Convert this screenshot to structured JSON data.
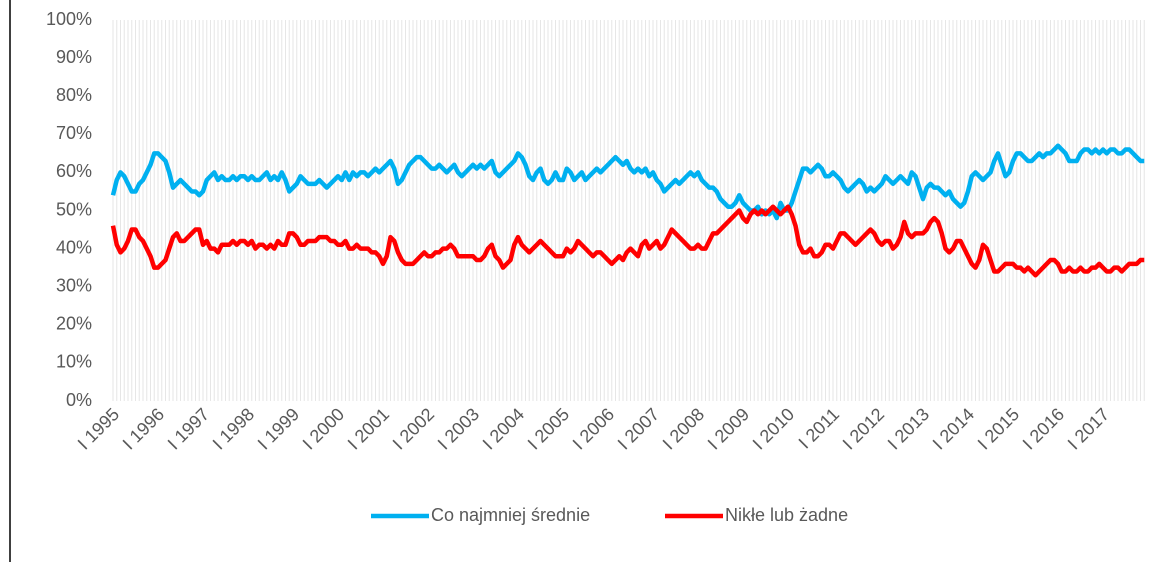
{
  "chart_data": {
    "type": "line",
    "categories": [
      "I 1995",
      null,
      null,
      null,
      null,
      null,
      null,
      null,
      null,
      null,
      null,
      null,
      "I 1996",
      null,
      null,
      null,
      null,
      null,
      null,
      null,
      null,
      null,
      null,
      null,
      "I 1997",
      null,
      null,
      null,
      null,
      null,
      null,
      null,
      null,
      null,
      null,
      null,
      "I 1998",
      null,
      null,
      null,
      null,
      null,
      null,
      null,
      null,
      null,
      null,
      null,
      "I 1999",
      null,
      null,
      null,
      null,
      null,
      null,
      null,
      null,
      null,
      null,
      null,
      "I 2000",
      null,
      null,
      null,
      null,
      null,
      null,
      null,
      null,
      null,
      null,
      null,
      "I 2001",
      null,
      null,
      null,
      null,
      null,
      null,
      null,
      null,
      null,
      null,
      null,
      "I 2002",
      null,
      null,
      null,
      null,
      null,
      null,
      null,
      null,
      null,
      null,
      null,
      "I 2003",
      null,
      null,
      null,
      null,
      null,
      null,
      null,
      null,
      null,
      null,
      null,
      "I 2004",
      null,
      null,
      null,
      null,
      null,
      null,
      null,
      null,
      null,
      null,
      null,
      "I 2005",
      null,
      null,
      null,
      null,
      null,
      null,
      null,
      null,
      null,
      null,
      null,
      "I 2006",
      null,
      null,
      null,
      null,
      null,
      null,
      null,
      null,
      null,
      null,
      null,
      "I 2007",
      null,
      null,
      null,
      null,
      null,
      null,
      null,
      null,
      null,
      null,
      null,
      "I 2008",
      null,
      null,
      null,
      null,
      null,
      null,
      null,
      null,
      null,
      null,
      null,
      "I 2009",
      null,
      null,
      null,
      null,
      null,
      null,
      null,
      null,
      null,
      null,
      null,
      "I 2010",
      null,
      null,
      null,
      null,
      null,
      null,
      null,
      null,
      null,
      null,
      null,
      "I 2011",
      null,
      null,
      null,
      null,
      null,
      null,
      null,
      null,
      null,
      null,
      null,
      "I 2012",
      null,
      null,
      null,
      null,
      null,
      null,
      null,
      null,
      null,
      null,
      null,
      "I 2013",
      null,
      null,
      null,
      null,
      null,
      null,
      null,
      null,
      null,
      null,
      null,
      "I 2014",
      null,
      null,
      null,
      null,
      null,
      null,
      null,
      null,
      null,
      null,
      null,
      "I 2015",
      null,
      null,
      null,
      null,
      null,
      null,
      null,
      null,
      null,
      null,
      null,
      "I 2016",
      null,
      null,
      null,
      null,
      null,
      null,
      null,
      null,
      null,
      null,
      null,
      "I 2017",
      null,
      null,
      null,
      null,
      null,
      null,
      null,
      null,
      null,
      null,
      null
    ],
    "series": [
      {
        "name": "Co najmniej średnie",
        "color": "#00b0f0",
        "values": [
          54,
          58,
          60,
          59,
          57,
          55,
          55,
          57,
          58,
          60,
          62,
          65,
          65,
          64,
          63,
          60,
          56,
          57,
          58,
          57,
          56,
          55,
          55,
          54,
          55,
          58,
          59,
          60,
          58,
          59,
          58,
          58,
          59,
          58,
          59,
          59,
          58,
          59,
          58,
          58,
          59,
          60,
          58,
          59,
          58,
          60,
          58,
          55,
          56,
          57,
          59,
          58,
          57,
          57,
          57,
          58,
          57,
          56,
          57,
          58,
          59,
          58,
          60,
          58,
          60,
          59,
          60,
          60,
          59,
          60,
          61,
          60,
          61,
          62,
          63,
          61,
          57,
          58,
          60,
          62,
          63,
          64,
          64,
          63,
          62,
          61,
          61,
          62,
          61,
          60,
          61,
          62,
          60,
          59,
          60,
          61,
          62,
          61,
          62,
          61,
          62,
          63,
          60,
          59,
          60,
          61,
          62,
          63,
          65,
          64,
          62,
          59,
          58,
          60,
          61,
          58,
          57,
          58,
          60,
          58,
          58,
          61,
          60,
          58,
          59,
          60,
          58,
          59,
          60,
          61,
          60,
          61,
          62,
          63,
          64,
          63,
          62,
          63,
          61,
          60,
          61,
          60,
          61,
          59,
          60,
          58,
          57,
          55,
          56,
          57,
          58,
          57,
          58,
          59,
          60,
          59,
          60,
          58,
          57,
          56,
          56,
          55,
          53,
          52,
          51,
          51,
          52,
          54,
          52,
          51,
          50,
          50,
          51,
          49,
          50,
          49,
          50,
          48,
          52,
          50,
          50,
          52,
          55,
          58,
          61,
          61,
          60,
          61,
          62,
          61,
          59,
          59,
          60,
          59,
          58,
          56,
          55,
          56,
          57,
          58,
          57,
          55,
          56,
          55,
          56,
          57,
          59,
          58,
          57,
          58,
          59,
          58,
          57,
          60,
          59,
          56,
          53,
          56,
          57,
          56,
          56,
          55,
          54,
          55,
          53,
          52,
          51,
          52,
          55,
          59,
          60,
          59,
          58,
          59,
          60,
          63,
          65,
          62,
          59,
          60,
          63,
          65,
          65,
          64,
          63,
          63,
          64,
          65,
          64,
          65,
          65,
          66,
          67,
          66,
          65,
          63,
          63,
          63,
          65,
          66,
          66,
          65,
          66,
          65,
          66,
          65,
          66,
          66,
          65,
          65,
          66,
          66,
          65,
          64,
          63,
          63
        ]
      },
      {
        "name": "Nikłe lub żadne",
        "color": "#ff0000",
        "values": [
          46,
          41,
          39,
          40,
          42,
          45,
          45,
          43,
          42,
          40,
          38,
          35,
          35,
          36,
          37,
          40,
          43,
          44,
          42,
          42,
          43,
          44,
          45,
          45,
          41,
          42,
          40,
          40,
          39,
          41,
          41,
          41,
          42,
          41,
          42,
          42,
          41,
          42,
          40,
          41,
          41,
          40,
          41,
          40,
          42,
          41,
          41,
          44,
          44,
          43,
          41,
          41,
          42,
          42,
          42,
          43,
          43,
          43,
          42,
          42,
          41,
          41,
          42,
          40,
          40,
          41,
          40,
          40,
          40,
          39,
          39,
          38,
          36,
          38,
          43,
          42,
          39,
          37,
          36,
          36,
          36,
          37,
          38,
          39,
          38,
          38,
          39,
          39,
          40,
          40,
          41,
          40,
          38,
          38,
          38,
          38,
          38,
          37,
          37,
          38,
          40,
          41,
          38,
          37,
          35,
          36,
          37,
          41,
          43,
          41,
          40,
          39,
          40,
          41,
          42,
          41,
          40,
          39,
          38,
          38,
          38,
          40,
          39,
          40,
          42,
          41,
          40,
          39,
          38,
          39,
          39,
          38,
          37,
          36,
          37,
          38,
          37,
          39,
          40,
          39,
          38,
          41,
          42,
          40,
          41,
          42,
          40,
          41,
          43,
          45,
          44,
          43,
          42,
          41,
          40,
          40,
          41,
          40,
          40,
          42,
          44,
          44,
          45,
          46,
          47,
          48,
          49,
          50,
          48,
          47,
          49,
          50,
          49,
          50,
          49,
          50,
          51,
          50,
          49,
          50,
          51,
          49,
          46,
          41,
          39,
          39,
          40,
          38,
          38,
          39,
          41,
          41,
          40,
          42,
          44,
          44,
          43,
          42,
          41,
          42,
          43,
          44,
          45,
          44,
          42,
          41,
          42,
          42,
          40,
          41,
          43,
          47,
          44,
          43,
          44,
          44,
          44,
          45,
          47,
          48,
          47,
          44,
          40,
          39,
          40,
          42,
          42,
          40,
          38,
          36,
          35,
          37,
          41,
          40,
          37,
          34,
          34,
          35,
          36,
          36,
          36,
          35,
          35,
          34,
          35,
          34,
          33,
          34,
          35,
          36,
          37,
          37,
          36,
          34,
          34,
          35,
          34,
          34,
          35,
          34,
          34,
          35,
          35,
          36,
          35,
          34,
          34,
          35,
          35,
          34,
          35,
          36,
          36,
          36,
          37,
          37
        ]
      }
    ],
    "ylim": [
      0,
      100
    ],
    "yticks": [
      {
        "value": 0,
        "label": "0%"
      },
      {
        "value": 10,
        "label": "10%"
      },
      {
        "value": 20,
        "label": "20%"
      },
      {
        "value": 30,
        "label": "30%"
      },
      {
        "value": 40,
        "label": "40%"
      },
      {
        "value": 50,
        "label": "50%"
      },
      {
        "value": 60,
        "label": "60%"
      },
      {
        "value": 70,
        "label": "70%"
      },
      {
        "value": 80,
        "label": "80%"
      },
      {
        "value": 90,
        "label": "90%"
      },
      {
        "value": 100,
        "label": "100%"
      }
    ],
    "legend": "bottom"
  }
}
